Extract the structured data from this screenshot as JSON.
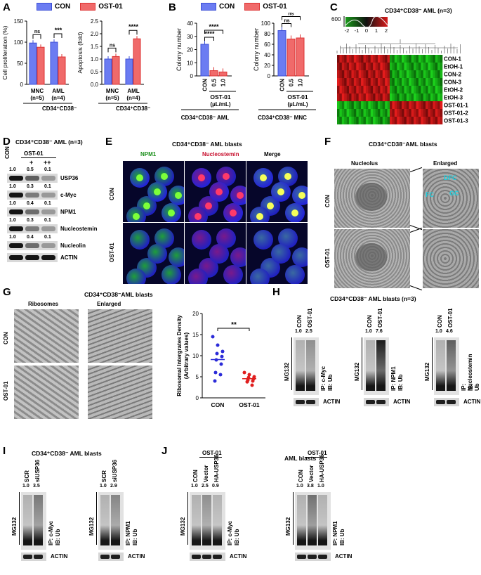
{
  "legend": {
    "con": "CON",
    "ost": "OST-01"
  },
  "colors": {
    "con": "#6b7cf2",
    "ost": "#f06a6a",
    "con_border": "#3c4fd6",
    "ost_border": "#d33"
  },
  "panelA": {
    "letter": "A",
    "chart1_ylabel": "Cell proliferation (%)",
    "chart2_ylabel": "Apoptosis (fold)",
    "groups": [
      "MNC",
      "AML"
    ],
    "group_ns": [
      "(n=5)",
      "(n=4)"
    ],
    "footer": "CD34⁺CD38⁻",
    "sig1": [
      "ns",
      "***"
    ],
    "sig2": [
      "ns",
      "****"
    ]
  },
  "panelB": {
    "letter": "B",
    "ylabel": "Colony number",
    "cats": [
      "CON",
      "0.5",
      "1.0"
    ],
    "sub": "OST-01",
    "unit": "(µL/mL)",
    "footer1": "CD34⁺CD38⁻ AML",
    "footer2": "CD34⁺CD38⁻ MNC",
    "sig1": [
      "****",
      "****"
    ],
    "sig2": [
      "ns",
      "ns"
    ]
  },
  "chart_data": [
    {
      "type": "bar",
      "title": "",
      "ylabel": "Cell proliferation (%)",
      "categories": [
        "MNC (n=5)",
        "AML (n=4)"
      ],
      "ylim": [
        0,
        150
      ],
      "yticks": [
        0,
        50,
        100,
        150
      ],
      "series": [
        {
          "name": "CON",
          "values": [
            98,
            100
          ]
        },
        {
          "name": "OST-01",
          "values": [
            88,
            65
          ]
        }
      ]
    },
    {
      "type": "bar",
      "title": "",
      "ylabel": "Apoptosis (fold)",
      "categories": [
        "MNC (n=5)",
        "AML (n=4)"
      ],
      "ylim": [
        0,
        2.5
      ],
      "yticks": [
        0.0,
        0.5,
        1.0,
        1.5,
        2.0,
        2.5
      ],
      "series": [
        {
          "name": "CON",
          "values": [
            1.0,
            1.0
          ]
        },
        {
          "name": "OST-01",
          "values": [
            1.1,
            1.8
          ]
        }
      ]
    },
    {
      "type": "bar",
      "title": "",
      "ylabel": "Colony number",
      "categories": [
        "CON",
        "0.5",
        "1.0"
      ],
      "ylim": [
        0,
        40
      ],
      "yticks": [
        0,
        10,
        20,
        30,
        40
      ],
      "values": [
        24,
        4,
        3
      ]
    },
    {
      "type": "bar",
      "title": "",
      "ylabel": "Colony number",
      "categories": [
        "CON",
        "0.5",
        "1.0"
      ],
      "ylim": [
        0,
        100
      ],
      "yticks": [
        0,
        20,
        40,
        60,
        80,
        100
      ],
      "values": [
        86,
        70,
        72
      ]
    },
    {
      "type": "scatter",
      "title": "",
      "ylabel": "Ribosomal Intergrates Density (Arbitrary values)",
      "categories": [
        "CON",
        "OST-01"
      ],
      "ylim": [
        0,
        20
      ],
      "yticks": [
        0,
        5,
        10,
        15,
        20
      ],
      "series": [
        {
          "name": "CON",
          "values": [
            14.5,
            12.5,
            11,
            10.5,
            9.8,
            9,
            8,
            6,
            5.5,
            4
          ]
        },
        {
          "name": "OST-01",
          "values": [
            6,
            5.5,
            5,
            4.8,
            4.5,
            4.2,
            4,
            3.8,
            3
          ]
        }
      ],
      "significance": "**"
    }
  ],
  "panelC": {
    "letter": "C",
    "title": "CD34⁺CD38⁻ AML (n=3)",
    "scale_top": "600",
    "scale_ticks": [
      "-2",
      "-1",
      "0",
      "1",
      "2"
    ],
    "rows": [
      "CON-1",
      "EtOH-1",
      "CON-2",
      "CON-3",
      "EtOH-2",
      "EtOH-3",
      "OST-01-1",
      "OST-01-2",
      "OST-01-3"
    ]
  },
  "panelD": {
    "letter": "D",
    "title": "CD34⁺CD38⁻ AML (n=3)",
    "col_con": "CON",
    "col_ost": "OST-01",
    "doses": [
      "+",
      "++"
    ],
    "rows": [
      {
        "name": "USP36",
        "vals": [
          "1.0",
          "0.5",
          "0.1"
        ]
      },
      {
        "name": "c-Myc",
        "vals": [
          "1.0",
          "0.3",
          "0.1"
        ]
      },
      {
        "name": "NPM1",
        "vals": [
          "1.0",
          "0.4",
          "0.1"
        ]
      },
      {
        "name": "Nucleostemin",
        "vals": [
          "1.0",
          "0.3",
          "0.1"
        ]
      },
      {
        "name": "Nucleolin",
        "vals": [
          "1.0",
          "0.4",
          "0.1"
        ]
      },
      {
        "name": "ACTIN",
        "vals": []
      }
    ]
  },
  "panelE": {
    "letter": "E",
    "title": "CD34⁺CD38⁻ AML blasts",
    "cols": [
      "NPM1",
      "Nucleostemin",
      "Merge"
    ],
    "rows": [
      "CON",
      "OST-01"
    ]
  },
  "panelF": {
    "letter": "F",
    "title": "CD34⁺CD38⁻AML blasts",
    "cols": [
      "Nucleolus",
      "Enlarged"
    ],
    "rows": [
      "CON",
      "OST-01"
    ],
    "labels": [
      "DFC",
      "FC",
      "GC"
    ]
  },
  "panelG": {
    "letter": "G",
    "title": "CD34⁺CD38⁻AML blasts",
    "cols": [
      "Ribosomes",
      "Enlarged"
    ],
    "rows": [
      "CON",
      "OST-01"
    ],
    "groups": [
      "CON",
      "OST-01"
    ],
    "sig": "**",
    "ylabel1": "Ribosomal Intergrates Density",
    "ylabel2": "(Arbitrary values)"
  },
  "panelH": {
    "letter": "H",
    "title": "CD34⁺CD38⁻ AML blasts (n=3)",
    "mg": "MG132",
    "actin": "ACTIN",
    "blots": [
      {
        "lanes": [
          "CON",
          "OST-01"
        ],
        "vals": [
          "1.0",
          "2.5"
        ],
        "ip": "IP: c-Myc",
        "ib": "IB: Ub"
      },
      {
        "lanes": [
          "CON",
          "OST-01"
        ],
        "vals": [
          "1.0",
          "7.6"
        ],
        "ip": "IP: NPM1",
        "ib": "IB: Ub"
      },
      {
        "lanes": [
          "CON",
          "OST-01"
        ],
        "vals": [
          "1.0",
          "4.6"
        ],
        "ip": "IP: Nucleostemin",
        "ib": "IB: Ub"
      }
    ]
  },
  "panelI": {
    "letter": "I",
    "title": "CD34⁺CD38⁻ AML blasts",
    "mg": "MG132",
    "actin": "ACTIN",
    "blots": [
      {
        "lanes": [
          "SCR",
          "siUSP36"
        ],
        "vals": [
          "1.0",
          "3.5"
        ],
        "ip": "IP: c-Myc",
        "ib": "IB: Ub"
      },
      {
        "lanes": [
          "SCR",
          "siUSP36"
        ],
        "vals": [
          "1.0",
          "2.9"
        ],
        "ip": "IP: NPM1",
        "ib": "IB: Ub"
      }
    ]
  },
  "panelJ": {
    "letter": "J",
    "title": "AML blasts",
    "ost": "OST-01",
    "mg": "MG132",
    "actin": "ACTIN",
    "blots": [
      {
        "lanes": [
          "CON",
          "Vector",
          "HA-USP36"
        ],
        "vals": [
          "1.0",
          "2.5",
          "0.9"
        ],
        "ip": "IP: c-Myc",
        "ib": "IB: Ub"
      },
      {
        "lanes": [
          "CON",
          "Vector",
          "HA-USP36"
        ],
        "vals": [
          "1.0",
          "3.8",
          "1.0"
        ],
        "ip": "IP: NPM1",
        "ib": "IB: Ub"
      }
    ]
  }
}
